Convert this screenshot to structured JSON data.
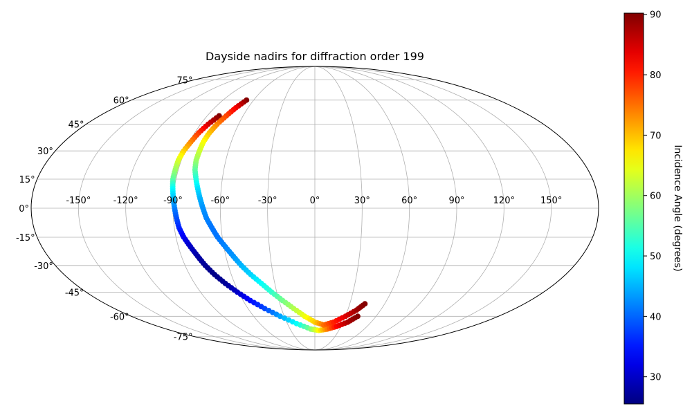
{
  "chart_data": {
    "type": "scatter",
    "projection": "mollweide",
    "title": "Dayside nadirs for diffraction order 199",
    "grid": true,
    "x_ticks": [
      "-150°",
      "-120°",
      "-90°",
      "-60°",
      "-30°",
      "0°",
      "30°",
      "60°",
      "90°",
      "120°",
      "150°"
    ],
    "y_ticks": [
      "-75°",
      "-60°",
      "-45°",
      "-30°",
      "-15°",
      "0°",
      "15°",
      "30°",
      "45°",
      "60°",
      "75°"
    ],
    "xlim": [
      -180,
      180
    ],
    "ylim": [
      -90,
      90
    ],
    "colorbar": {
      "label": "Incidence Angle (degrees)",
      "colormap": "jet",
      "range": [
        25.5,
        90.2
      ],
      "ticks": [
        "30",
        "40",
        "50",
        "60",
        "70",
        "80",
        "90"
      ]
    },
    "series": [
      {
        "points": [
          {
            "lon": -80,
            "lat": 50,
            "inc": 90
          },
          {
            "lon": -84,
            "lat": 45,
            "inc": 85
          },
          {
            "lon": -87,
            "lat": 40,
            "inc": 79
          },
          {
            "lon": -89,
            "lat": 35,
            "inc": 74
          },
          {
            "lon": -91,
            "lat": 30,
            "inc": 69
          },
          {
            "lon": -92,
            "lat": 25,
            "inc": 64
          },
          {
            "lon": -92,
            "lat": 20,
            "inc": 60
          },
          {
            "lon": -92,
            "lat": 15,
            "inc": 56
          },
          {
            "lon": -91,
            "lat": 10,
            "inc": 50
          },
          {
            "lon": -90,
            "lat": 5,
            "inc": 46
          },
          {
            "lon": -89,
            "lat": 0,
            "inc": 42
          },
          {
            "lon": -88,
            "lat": -5,
            "inc": 39
          },
          {
            "lon": -87,
            "lat": -10,
            "inc": 36
          },
          {
            "lon": -85,
            "lat": -15,
            "inc": 33
          },
          {
            "lon": -82,
            "lat": -20,
            "inc": 30
          },
          {
            "lon": -79,
            "lat": -25,
            "inc": 28
          },
          {
            "lon": -76,
            "lat": -30,
            "inc": 27
          },
          {
            "lon": -72,
            "lat": -35,
            "inc": 26
          },
          {
            "lon": -67,
            "lat": -40,
            "inc": 27
          },
          {
            "lon": -61,
            "lat": -45,
            "inc": 30
          },
          {
            "lon": -54,
            "lat": -50,
            "inc": 34
          },
          {
            "lon": -45,
            "lat": -55,
            "inc": 38
          },
          {
            "lon": -34,
            "lat": -60,
            "inc": 44
          },
          {
            "lon": -20,
            "lat": -65,
            "inc": 50
          },
          {
            "lon": -5,
            "lat": -69,
            "inc": 58
          },
          {
            "lon": 5,
            "lat": -70,
            "inc": 66
          },
          {
            "lon": 15,
            "lat": -69,
            "inc": 74
          },
          {
            "lon": 25,
            "lat": -67,
            "inc": 82
          },
          {
            "lon": 35,
            "lat": -64,
            "inc": 87
          },
          {
            "lon": 42,
            "lat": -60,
            "inc": 90
          }
        ]
      },
      {
        "points": [
          {
            "lon": -67,
            "lat": 60,
            "inc": 90
          },
          {
            "lon": -71,
            "lat": 55,
            "inc": 83
          },
          {
            "lon": -74,
            "lat": 50,
            "inc": 78
          },
          {
            "lon": -77,
            "lat": 45,
            "inc": 74
          },
          {
            "lon": -79,
            "lat": 40,
            "inc": 70
          },
          {
            "lon": -80,
            "lat": 35,
            "inc": 66
          },
          {
            "lon": -80,
            "lat": 30,
            "inc": 63
          },
          {
            "lon": -80,
            "lat": 25,
            "inc": 60
          },
          {
            "lon": -79,
            "lat": 20,
            "inc": 56
          },
          {
            "lon": -77,
            "lat": 15,
            "inc": 52
          },
          {
            "lon": -75,
            "lat": 10,
            "inc": 48
          },
          {
            "lon": -73,
            "lat": 5,
            "inc": 45
          },
          {
            "lon": -71,
            "lat": 0,
            "inc": 43
          },
          {
            "lon": -69,
            "lat": -5,
            "inc": 42
          },
          {
            "lon": -66,
            "lat": -10,
            "inc": 41
          },
          {
            "lon": -63,
            "lat": -15,
            "inc": 41
          },
          {
            "lon": -59,
            "lat": -20,
            "inc": 42
          },
          {
            "lon": -55,
            "lat": -25,
            "inc": 43
          },
          {
            "lon": -51,
            "lat": -30,
            "inc": 45
          },
          {
            "lon": -46,
            "lat": -35,
            "inc": 47
          },
          {
            "lon": -40,
            "lat": -40,
            "inc": 50
          },
          {
            "lon": -34,
            "lat": -45,
            "inc": 53
          },
          {
            "lon": -27,
            "lat": -50,
            "inc": 57
          },
          {
            "lon": -19,
            "lat": -55,
            "inc": 61
          },
          {
            "lon": -10,
            "lat": -60,
            "inc": 65
          },
          {
            "lon": 0,
            "lat": -64,
            "inc": 69
          },
          {
            "lon": 10,
            "lat": -66,
            "inc": 75
          },
          {
            "lon": 20,
            "lat": -64,
            "inc": 80
          },
          {
            "lon": 30,
            "lat": -60,
            "inc": 84
          },
          {
            "lon": 38,
            "lat": -56,
            "inc": 88
          },
          {
            "lon": 43,
            "lat": -52,
            "inc": 90
          }
        ]
      }
    ]
  }
}
